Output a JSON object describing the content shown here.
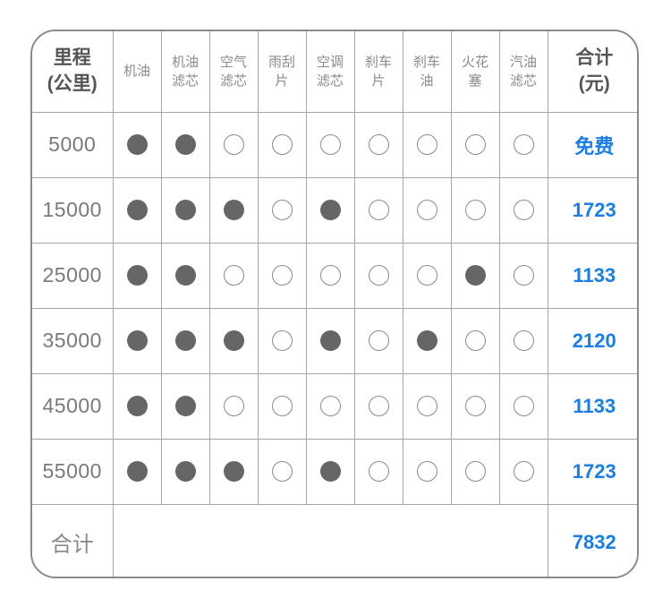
{
  "table": {
    "corner_header": "里程\n(公里)",
    "columns": [
      {
        "key": "engine-oil",
        "label": "机油"
      },
      {
        "key": "oil-filter",
        "label": "机油\n滤芯"
      },
      {
        "key": "air-filter",
        "label": "空气\n滤芯"
      },
      {
        "key": "wiper-blade",
        "label": "雨刮\n片"
      },
      {
        "key": "ac-filter",
        "label": "空调\n滤芯"
      },
      {
        "key": "brake-pad",
        "label": "刹车\n片"
      },
      {
        "key": "brake-fluid",
        "label": "刹车\n油"
      },
      {
        "key": "spark-plug",
        "label": "火花\n塞"
      },
      {
        "key": "fuel-filter",
        "label": "汽油\n滤芯"
      }
    ],
    "total_header": "合计\n(元)",
    "rows": [
      {
        "mileage": "5000",
        "items": [
          1,
          1,
          0,
          0,
          0,
          0,
          0,
          0,
          0
        ],
        "total": "免费"
      },
      {
        "mileage": "15000",
        "items": [
          1,
          1,
          1,
          0,
          1,
          0,
          0,
          0,
          0
        ],
        "total": "1723"
      },
      {
        "mileage": "25000",
        "items": [
          1,
          1,
          0,
          0,
          0,
          0,
          0,
          1,
          0
        ],
        "total": "1133"
      },
      {
        "mileage": "35000",
        "items": [
          1,
          1,
          1,
          0,
          1,
          0,
          1,
          0,
          0
        ],
        "total": "2120"
      },
      {
        "mileage": "45000",
        "items": [
          1,
          1,
          0,
          0,
          0,
          0,
          0,
          0,
          0
        ],
        "total": "1133"
      },
      {
        "mileage": "55000",
        "items": [
          1,
          1,
          1,
          0,
          1,
          0,
          0,
          0,
          0
        ],
        "total": "1723"
      }
    ],
    "footer": {
      "label": "合计",
      "total": "7832"
    }
  },
  "colors": {
    "accent_blue": "#1a7ee8",
    "filled_circle": "#666666",
    "grid_line": "#a6a6a6",
    "outer_border": "#8a8a8a",
    "header_text": "#555555",
    "muted_text": "#8a8a8a"
  },
  "chart_data": {
    "type": "table",
    "title": "",
    "columns": [
      "里程(公里)",
      "机油",
      "机油滤芯",
      "空气滤芯",
      "雨刮片",
      "空调滤芯",
      "刹车片",
      "刹车油",
      "火花塞",
      "汽油滤芯",
      "合计(元)"
    ],
    "rows": [
      [
        "5000",
        1,
        1,
        0,
        0,
        0,
        0,
        0,
        0,
        0,
        "免费"
      ],
      [
        "15000",
        1,
        1,
        1,
        0,
        1,
        0,
        0,
        0,
        0,
        "1723"
      ],
      [
        "25000",
        1,
        1,
        0,
        0,
        0,
        0,
        0,
        1,
        0,
        "1133"
      ],
      [
        "35000",
        1,
        1,
        1,
        0,
        1,
        0,
        1,
        0,
        0,
        "2120"
      ],
      [
        "45000",
        1,
        1,
        0,
        0,
        0,
        0,
        0,
        0,
        0,
        "1133"
      ],
      [
        "55000",
        1,
        1,
        1,
        0,
        1,
        0,
        0,
        0,
        0,
        "1723"
      ]
    ],
    "footer_row": [
      "合计",
      "7832"
    ],
    "cell_encoding": "1 = filled dot (service performed), 0 = empty dot"
  }
}
